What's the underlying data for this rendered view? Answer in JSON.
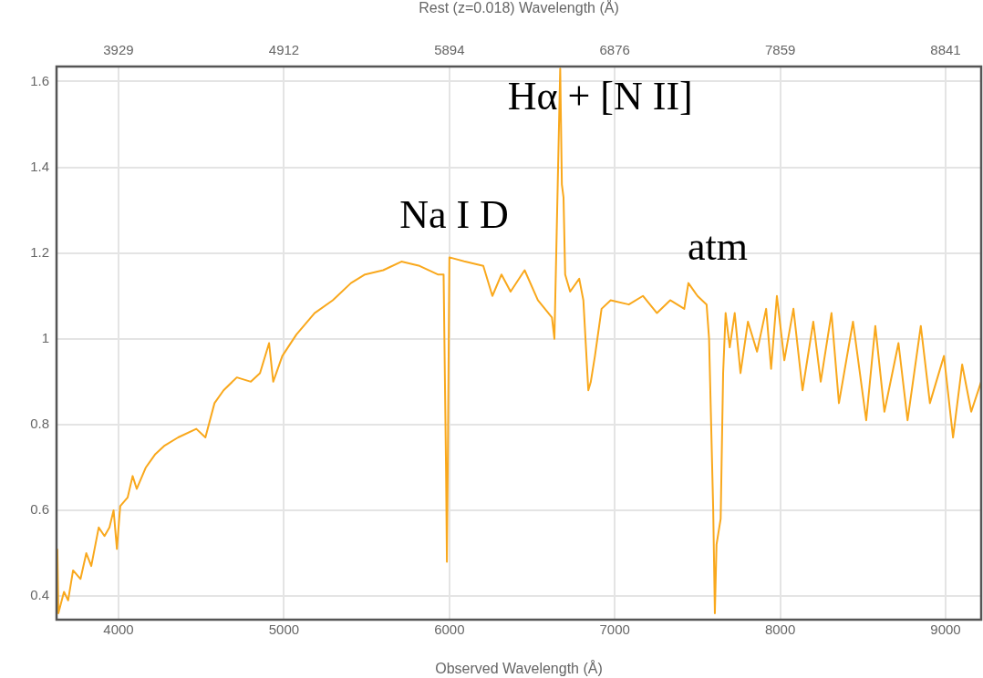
{
  "chart_data": {
    "type": "line",
    "xlabel": "Observed Wavelength (Å)",
    "x2label": "Rest (z=0.018) Wavelength (Å)",
    "xlim": [
      3625,
      9215
    ],
    "xticks": [
      4000,
      5000,
      6000,
      7000,
      8000,
      9000
    ],
    "x2lim": [
      3561,
      9052
    ],
    "x2ticks": [
      3929,
      4912,
      5894,
      6876,
      7859,
      8841
    ],
    "ylim": [
      0.345,
      1.635
    ],
    "yticks": [
      0.4,
      0.6,
      0.8,
      1.0,
      1.2,
      1.4,
      1.6
    ],
    "grid": true,
    "marker": "none",
    "line_style": "solid",
    "annotations": [
      "Na I D",
      "Hα + [N II]",
      "atm"
    ],
    "series": [
      {
        "color": "#f9a81c",
        "x": [
          3630,
          3636,
          3670,
          3695,
          3725,
          3770,
          3805,
          3835,
          3880,
          3915,
          3945,
          3970,
          3990,
          4010,
          4055,
          4085,
          4110,
          4165,
          4220,
          4275,
          4360,
          4470,
          4525,
          4580,
          4635,
          4715,
          4800,
          4855,
          4910,
          4935,
          4990,
          5075,
          5185,
          5295,
          5405,
          5490,
          5600,
          5710,
          5820,
          5930,
          5965,
          5980,
          5985,
          5990,
          6000,
          6095,
          6205,
          6260,
          6315,
          6370,
          6455,
          6535,
          6620,
          6635,
          6655,
          6670,
          6680,
          6690,
          6700,
          6730,
          6785,
          6810,
          6840,
          6855,
          6880,
          6920,
          6975,
          7085,
          7170,
          7255,
          7335,
          7420,
          7445,
          7500,
          7555,
          7570,
          7595,
          7605,
          7615,
          7640,
          7655,
          7670,
          7695,
          7725,
          7760,
          7805,
          7860,
          7915,
          7945,
          7980,
          8025,
          8080,
          8135,
          8200,
          8245,
          8310,
          8355,
          8440,
          8520,
          8575,
          8630,
          8715,
          8770,
          8850,
          8905,
          8990,
          9045,
          9100,
          9155,
          9215
        ],
        "values": [
          0.51,
          0.36,
          0.41,
          0.39,
          0.46,
          0.44,
          0.5,
          0.47,
          0.56,
          0.54,
          0.56,
          0.6,
          0.51,
          0.61,
          0.63,
          0.68,
          0.65,
          0.7,
          0.73,
          0.75,
          0.77,
          0.79,
          0.77,
          0.85,
          0.88,
          0.91,
          0.9,
          0.92,
          0.99,
          0.9,
          0.96,
          1.01,
          1.06,
          1.09,
          1.13,
          1.15,
          1.16,
          1.18,
          1.17,
          1.15,
          1.15,
          0.69,
          0.48,
          0.69,
          1.19,
          1.18,
          1.17,
          1.1,
          1.15,
          1.11,
          1.16,
          1.09,
          1.05,
          1.0,
          1.36,
          1.63,
          1.36,
          1.33,
          1.15,
          1.11,
          1.14,
          1.09,
          0.88,
          0.9,
          0.96,
          1.07,
          1.09,
          1.08,
          1.1,
          1.06,
          1.09,
          1.07,
          1.13,
          1.1,
          1.08,
          1.0,
          0.6,
          0.36,
          0.52,
          0.58,
          0.92,
          1.06,
          0.98,
          1.06,
          0.92,
          1.04,
          0.97,
          1.07,
          0.93,
          1.1,
          0.95,
          1.07,
          0.88,
          1.04,
          0.9,
          1.06,
          0.85,
          1.04,
          0.81,
          1.03,
          0.83,
          0.99,
          0.81,
          1.03,
          0.85,
          0.96,
          0.77,
          0.94,
          0.83,
          0.9
        ]
      }
    ]
  }
}
